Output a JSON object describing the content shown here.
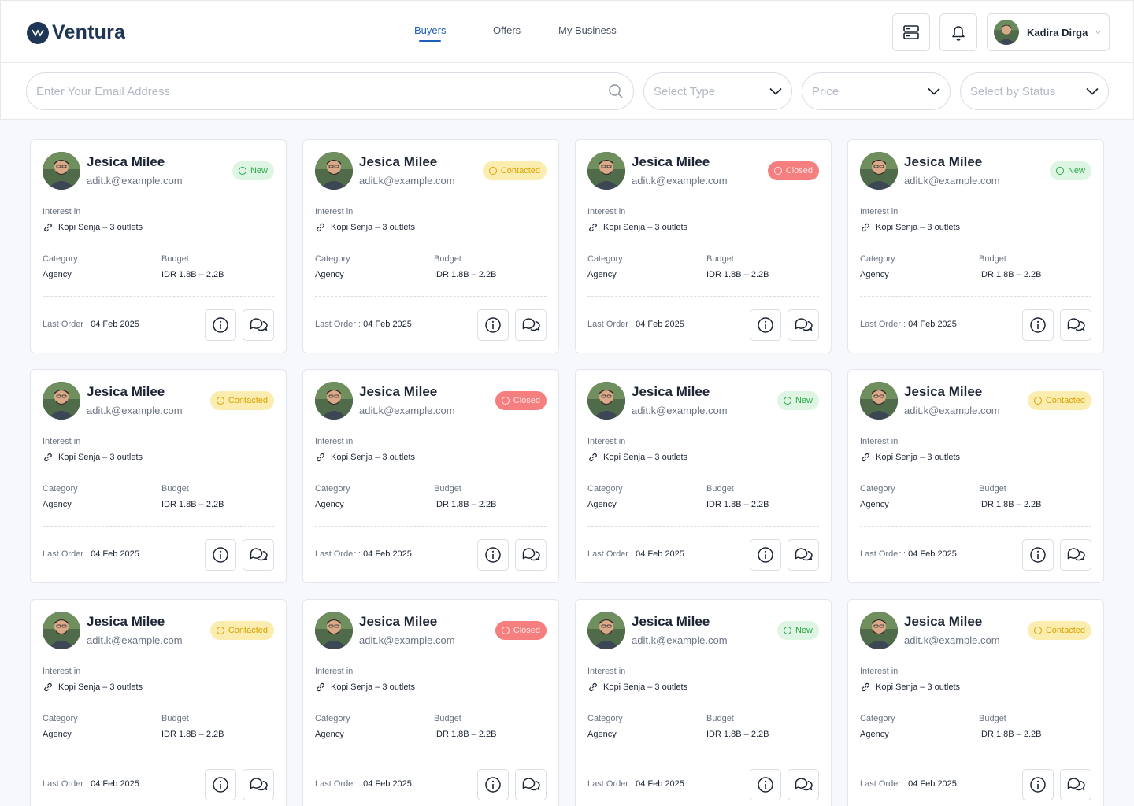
{
  "header": {
    "brand": "Ventura",
    "brand_mark_text": "VENTURA",
    "nav": [
      {
        "label": "Buyers",
        "active": true
      },
      {
        "label": "Offers",
        "active": false
      },
      {
        "label": "My Business",
        "active": false
      }
    ],
    "icons": [
      "server-icon",
      "bell-icon"
    ],
    "user_name": "Kadira Dirga"
  },
  "filters": {
    "email_placeholder": "Enter Your Email Address",
    "type_placeholder": "Select Type",
    "price_placeholder": "Price",
    "status_placeholder": "Select by Status"
  },
  "labels": {
    "interest": "Interest in",
    "category": "Category",
    "budget": "Budget",
    "last_order": "Last Order :"
  },
  "colors": {
    "brand": "#1f3555",
    "accent": "#1d5fbf",
    "status_new": "#27a844",
    "status_contacted": "#d9a300",
    "status_closed": "#f57e7e"
  },
  "cards": [
    {
      "name": "Jesica Milee",
      "email": "adit.k@example.com",
      "status": "New",
      "status_key": "new",
      "interest": "Kopi Senja – 3 outlets",
      "category": "Agency",
      "budget": "IDR 1.8B – 2.2B",
      "last_order": "04 Feb 2025"
    },
    {
      "name": "Jesica Milee",
      "email": "adit.k@example.com",
      "status": "Contacted",
      "status_key": "contacted",
      "interest": "Kopi Senja – 3 outlets",
      "category": "Agency",
      "budget": "IDR 1.8B – 2.2B",
      "last_order": "04 Feb 2025"
    },
    {
      "name": "Jesica Milee",
      "email": "adit.k@example.com",
      "status": "Closed",
      "status_key": "closed",
      "interest": "Kopi Senja – 3 outlets",
      "category": "Agency",
      "budget": "IDR 1.8B – 2.2B",
      "last_order": "04 Feb 2025"
    },
    {
      "name": "Jesica Milee",
      "email": "adit.k@example.com",
      "status": "New",
      "status_key": "new",
      "interest": "Kopi Senja – 3 outlets",
      "category": "Agency",
      "budget": "IDR 1.8B – 2.2B",
      "last_order": "04 Feb 2025"
    },
    {
      "name": "Jesica Milee",
      "email": "adit.k@example.com",
      "status": "Contacted",
      "status_key": "contacted",
      "interest": "Kopi Senja – 3 outlets",
      "category": "Agency",
      "budget": "IDR 1.8B – 2.2B",
      "last_order": "04 Feb 2025"
    },
    {
      "name": "Jesica Milee",
      "email": "adit.k@example.com",
      "status": "Closed",
      "status_key": "closed",
      "interest": "Kopi Senja – 3 outlets",
      "category": "Agency",
      "budget": "IDR 1.8B – 2.2B",
      "last_order": "04 Feb 2025"
    },
    {
      "name": "Jesica Milee",
      "email": "adit.k@example.com",
      "status": "New",
      "status_key": "new",
      "interest": "Kopi Senja – 3 outlets",
      "category": "Agency",
      "budget": "IDR 1.8B – 2.2B",
      "last_order": "04 Feb 2025"
    },
    {
      "name": "Jesica Milee",
      "email": "adit.k@example.com",
      "status": "Contacted",
      "status_key": "contacted",
      "interest": "Kopi Senja – 3 outlets",
      "category": "Agency",
      "budget": "IDR 1.8B – 2.2B",
      "last_order": "04 Feb 2025"
    },
    {
      "name": "Jesica Milee",
      "email": "adit.k@example.com",
      "status": "Contacted",
      "status_key": "contacted",
      "interest": "Kopi Senja – 3 outlets",
      "category": "Agency",
      "budget": "IDR 1.8B – 2.2B",
      "last_order": "04 Feb 2025"
    },
    {
      "name": "Jesica Milee",
      "email": "adit.k@example.com",
      "status": "Closed",
      "status_key": "closed",
      "interest": "Kopi Senja – 3 outlets",
      "category": "Agency",
      "budget": "IDR 1.8B – 2.2B",
      "last_order": "04 Feb 2025"
    },
    {
      "name": "Jesica Milee",
      "email": "adit.k@example.com",
      "status": "New",
      "status_key": "new",
      "interest": "Kopi Senja – 3 outlets",
      "category": "Agency",
      "budget": "IDR 1.8B – 2.2B",
      "last_order": "04 Feb 2025"
    },
    {
      "name": "Jesica Milee",
      "email": "adit.k@example.com",
      "status": "Contacted",
      "status_key": "contacted",
      "interest": "Kopi Senja – 3 outlets",
      "category": "Agency",
      "budget": "IDR 1.8B – 2.2B",
      "last_order": "04 Feb 2025"
    }
  ]
}
